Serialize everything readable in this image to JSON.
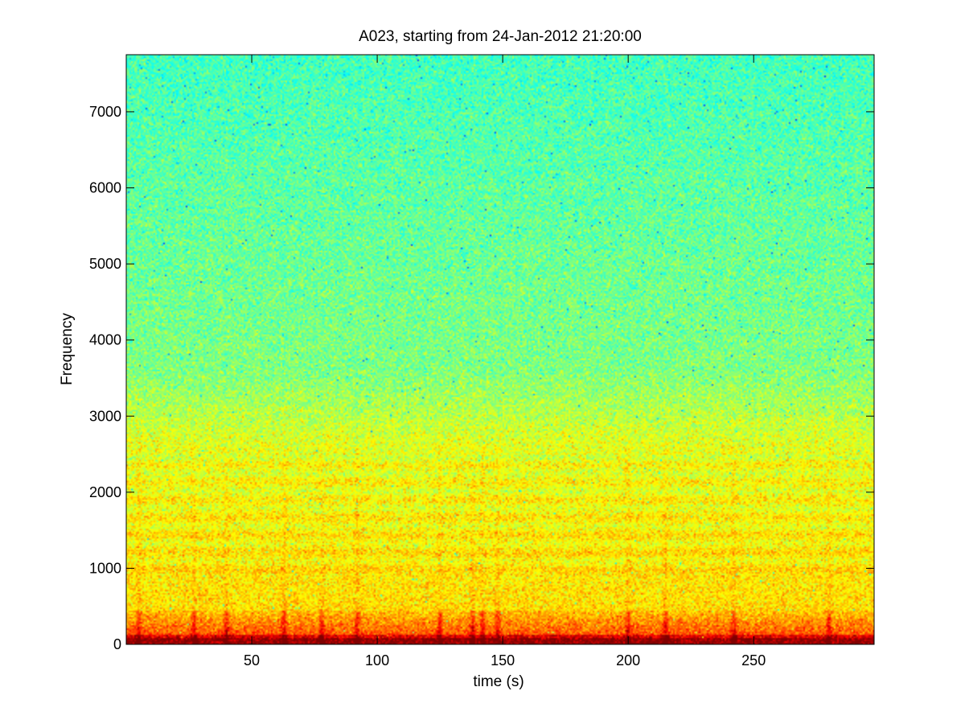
{
  "chart_data": {
    "type": "heatmap",
    "subtype": "spectrogram",
    "title": "A023, starting from 24-Jan-2012 21:20:00",
    "xlabel": "time (s)",
    "ylabel": "Frequency",
    "xlim": [
      0,
      298
    ],
    "ylim": [
      0,
      7750
    ],
    "x_ticks": [
      50,
      100,
      150,
      200,
      250
    ],
    "y_ticks": [
      0,
      1000,
      2000,
      3000,
      4000,
      5000,
      6000,
      7000
    ],
    "grid": false,
    "legend": "none",
    "colormap": "jet",
    "colors": {
      "background_high_freq": "#38d89c",
      "mid_band": "#a8f05a",
      "low_band": "#ffff00",
      "strong_low_freq": "#d71e00"
    },
    "description_values": {
      "broadband_level_relative": [
        {
          "freq_range": [
            0,
            150
          ],
          "level": 0.95
        },
        {
          "freq_range": [
            150,
            450
          ],
          "level": 0.8
        },
        {
          "freq_range": [
            450,
            2500
          ],
          "level": 0.62
        },
        {
          "freq_range": [
            2500,
            3500
          ],
          "level": 0.55
        },
        {
          "freq_range": [
            3500,
            7750
          ],
          "level": 0.42
        }
      ],
      "transient_times_s": [
        5,
        27,
        40,
        63,
        78,
        92,
        125,
        138,
        142,
        148,
        200,
        215,
        242,
        280
      ]
    }
  }
}
